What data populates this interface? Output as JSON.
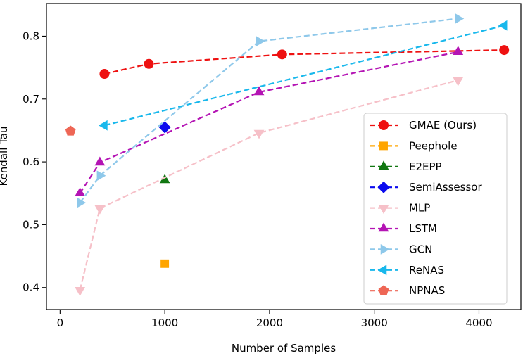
{
  "chart_data": {
    "type": "line",
    "xlabel": "Number of Samples",
    "ylabel": "Kendall Tau",
    "xlim": [
      -130,
      4400
    ],
    "ylim": [
      0.365,
      0.852
    ],
    "xticks": [
      0,
      1000,
      2000,
      3000,
      4000
    ],
    "xtick_labels": [
      "0",
      "1000",
      "2000",
      "3000",
      "4000"
    ],
    "yticks": [
      0.4,
      0.5,
      0.6,
      0.7,
      0.8
    ],
    "ytick_labels": [
      "0.4",
      "0.5",
      "0.6",
      "0.7",
      "0.8"
    ],
    "grid": false,
    "legend_position": "lower-right",
    "series": [
      {
        "name": "GMAE (Ours)",
        "color": "#ee1111",
        "marker": "circle",
        "points": [
          [
            424,
            0.74
          ],
          [
            848,
            0.756
          ],
          [
            2120,
            0.771
          ],
          [
            4240,
            0.778
          ]
        ]
      },
      {
        "name": "Peephole",
        "color": "#ffa500",
        "marker": "square",
        "points": [
          [
            1000,
            0.438
          ]
        ]
      },
      {
        "name": "E2EPP",
        "color": "#117711",
        "marker": "triangle-up",
        "points": [
          [
            1000,
            0.571
          ]
        ]
      },
      {
        "name": "SemiAssessor",
        "color": "#0b0bee",
        "marker": "diamond",
        "points": [
          [
            1000,
            0.655
          ]
        ]
      },
      {
        "name": "MLP",
        "color": "#f6c0c8",
        "marker": "triangle-down",
        "points": [
          [
            190,
            0.396
          ],
          [
            380,
            0.526
          ],
          [
            1900,
            0.646
          ],
          [
            3800,
            0.73
          ]
        ]
      },
      {
        "name": "LSTM",
        "color": "#b414b4",
        "marker": "triangle-up",
        "points": [
          [
            190,
            0.55
          ],
          [
            380,
            0.599
          ],
          [
            1900,
            0.711
          ],
          [
            3800,
            0.775
          ]
        ]
      },
      {
        "name": "GCN",
        "color": "#8ec8ea",
        "marker": "triangle-right",
        "points": [
          [
            190,
            0.535
          ],
          [
            380,
            0.578
          ],
          [
            1900,
            0.792
          ],
          [
            3800,
            0.828
          ]
        ]
      },
      {
        "name": "ReNAS",
        "color": "#19b8ec",
        "marker": "triangle-left",
        "points": [
          [
            424,
            0.658
          ],
          [
            4240,
            0.817
          ]
        ]
      },
      {
        "name": "NPNAS",
        "color": "#ee6655",
        "marker": "pentagon",
        "points": [
          [
            100,
            0.649
          ]
        ]
      }
    ]
  }
}
